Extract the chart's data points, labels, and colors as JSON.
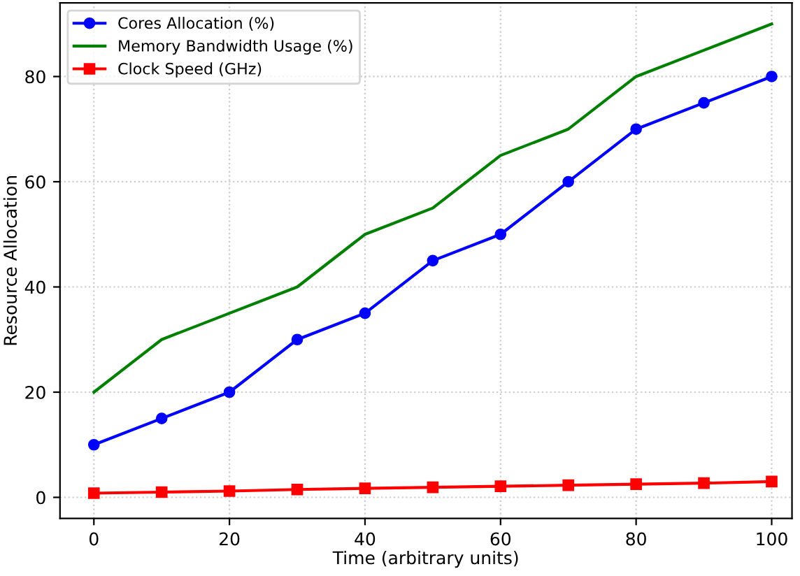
{
  "chart_data": {
    "type": "line",
    "xlabel": "Time (arbitrary units)",
    "ylabel": "Resource Allocation",
    "x": [
      0,
      10,
      20,
      30,
      40,
      50,
      60,
      70,
      80,
      90,
      100
    ],
    "series": [
      {
        "name": "Cores Allocation (%)",
        "color": "#0000ff",
        "marker": "circle",
        "values": [
          10,
          15,
          20,
          30,
          35,
          45,
          50,
          60,
          70,
          75,
          80
        ]
      },
      {
        "name": "Memory Bandwidth Usage (%)",
        "color": "#008000",
        "marker": "none",
        "values": [
          20,
          30,
          35,
          40,
          50,
          55,
          65,
          70,
          80,
          85,
          90
        ]
      },
      {
        "name": "Clock Speed (GHz)",
        "color": "#ff0000",
        "marker": "square",
        "values": [
          0.8,
          1.0,
          1.2,
          1.5,
          1.7,
          1.9,
          2.1,
          2.3,
          2.5,
          2.7,
          3.0
        ]
      }
    ],
    "xlim": [
      -5,
      103
    ],
    "ylim": [
      -4,
      94
    ],
    "xticks": [
      0,
      20,
      40,
      60,
      80,
      100
    ],
    "yticks": [
      0,
      20,
      40,
      60,
      80
    ],
    "grid": true,
    "legend": "top left",
    "line_style": "solid"
  }
}
